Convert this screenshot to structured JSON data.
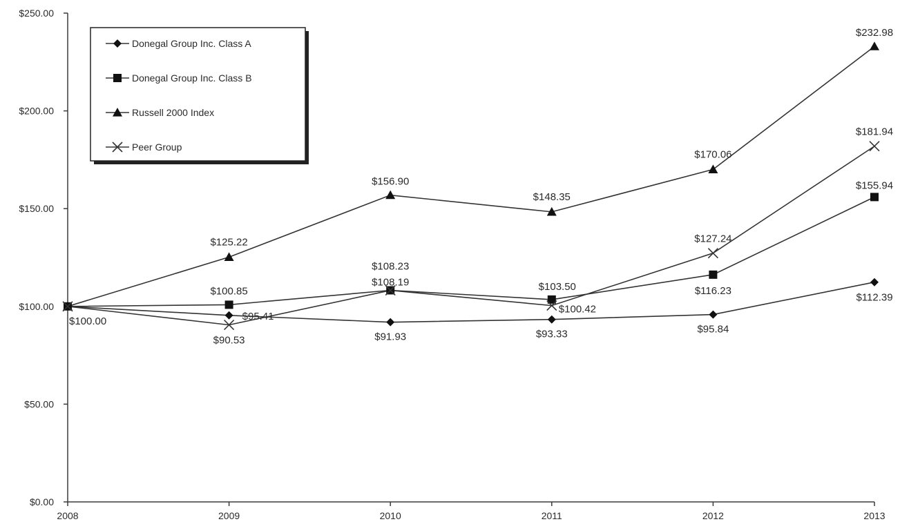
{
  "chart_data": {
    "type": "line",
    "title": "",
    "xlabel": "",
    "ylabel": "",
    "categories": [
      "2008",
      "2009",
      "2010",
      "2011",
      "2012",
      "2013"
    ],
    "ylim": [
      0,
      250
    ],
    "y_ticks": [
      0,
      50,
      100,
      150,
      200,
      250
    ],
    "y_tick_labels": [
      "$0.00",
      "$50.00",
      "$100.00",
      "$150.00",
      "$200.00",
      "$250.00"
    ],
    "grid": false,
    "legend_position": "top-left",
    "series": [
      {
        "name": "Donegal Group Inc. Class A",
        "marker": "diamond",
        "values": [
          100.0,
          95.41,
          91.93,
          93.33,
          95.84,
          112.39
        ],
        "labels": [
          "$100.00",
          "$95.41",
          "$91.93",
          "$93.33",
          "$95.84",
          "$112.39"
        ]
      },
      {
        "name": "Donegal Group Inc. Class B",
        "marker": "square",
        "values": [
          100.0,
          100.85,
          108.23,
          103.5,
          116.23,
          155.94
        ],
        "labels": [
          "",
          "$100.85",
          "$108.23",
          "$103.50",
          "$116.23",
          "$155.94"
        ]
      },
      {
        "name": "Russell 2000 Index",
        "marker": "triangle",
        "values": [
          100.0,
          125.22,
          156.9,
          148.35,
          170.06,
          232.98
        ],
        "labels": [
          "",
          "$125.22",
          "$156.90",
          "$148.35",
          "$170.06",
          "$232.98"
        ]
      },
      {
        "name": "Peer Group",
        "marker": "x",
        "values": [
          100.0,
          90.53,
          108.19,
          100.42,
          127.24,
          181.94
        ],
        "labels": [
          "",
          "$90.53",
          "$108.19",
          "$100.42",
          "$127.24",
          "$181.94"
        ]
      }
    ]
  }
}
